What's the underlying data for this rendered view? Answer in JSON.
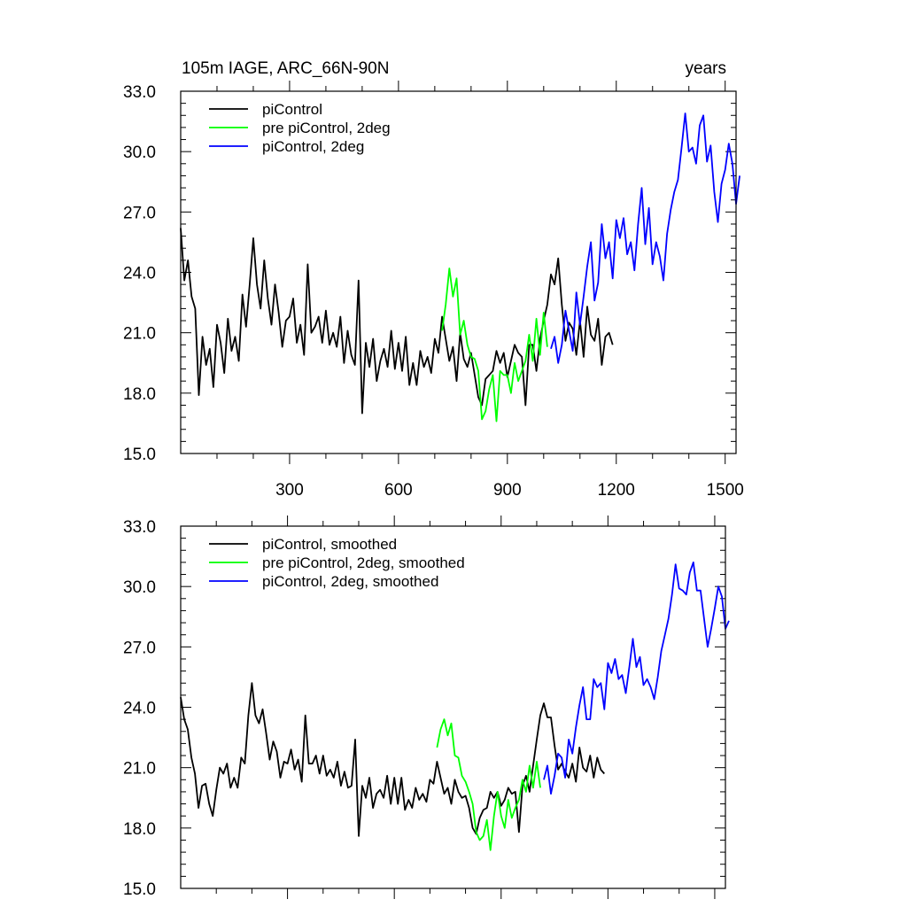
{
  "chart_data": [
    {
      "type": "line",
      "title": "105m IAGE, ARC_66N-90N",
      "units": "years",
      "xlim": [
        0,
        1530
      ],
      "ylim": [
        15,
        33
      ],
      "x_ticks": [
        300,
        600,
        900,
        1200,
        1500
      ],
      "y_ticks": [
        "15.0",
        "18.0",
        "21.0",
        "24.0",
        "27.0",
        "30.0",
        "33.0"
      ],
      "legend": {
        "placement": "top-left",
        "entries": [
          "piControl",
          "pre piControl, 2deg",
          "piControl, 2deg"
        ]
      },
      "series": [
        {
          "name": "piControl",
          "color": "#000000",
          "x_start": 0,
          "x_step": 10,
          "values": [
            26.2,
            23.6,
            24.6,
            22.8,
            22.2,
            17.9,
            20.8,
            19.4,
            20.2,
            18.3,
            21.4,
            20.5,
            19.0,
            21.7,
            20.1,
            20.8,
            19.6,
            22.9,
            21.3,
            23.4,
            25.7,
            23.4,
            22.2,
            24.6,
            22.7,
            21.4,
            23.4,
            22.0,
            20.3,
            21.6,
            21.8,
            22.7,
            20.5,
            21.4,
            19.9,
            24.4,
            21.0,
            21.3,
            21.8,
            20.5,
            22.1,
            20.4,
            21.0,
            20.3,
            21.8,
            19.5,
            21.1,
            19.9,
            19.4,
            23.6,
            17.0,
            20.5,
            19.3,
            20.7,
            18.6,
            19.6,
            20.2,
            19.3,
            21.1,
            19.2,
            20.5,
            19.1,
            20.8,
            18.4,
            19.5,
            18.4,
            20.1,
            19.3,
            19.8,
            19.0,
            20.7,
            20.0,
            21.8,
            20.7,
            19.6,
            20.3,
            18.6,
            21.0,
            19.7,
            19.3,
            20.0,
            18.9,
            17.8,
            17.4,
            18.7,
            18.9,
            19.1,
            20.1,
            19.5,
            20.0,
            18.8,
            19.6,
            20.4,
            20.0,
            19.8,
            17.4,
            20.4,
            20.4,
            19.1,
            20.7,
            21.6,
            22.4,
            23.9,
            23.4,
            24.7,
            22.4,
            20.6,
            21.5,
            21.2,
            19.9,
            21.6,
            19.8,
            22.3,
            20.9,
            20.6,
            21.7,
            19.4,
            20.8,
            21.0,
            20.4
          ]
        },
        {
          "name": "pre piControl, 2deg",
          "color": "#00ff00",
          "x_start": 720,
          "x_step": 10,
          "values": [
            21.1,
            22.4,
            24.2,
            22.8,
            23.7,
            20.9,
            21.6,
            20.4,
            19.8,
            19.7,
            19.1,
            16.7,
            17.1,
            18.2,
            18.9,
            16.6,
            19.1,
            18.9,
            18.9,
            18.0,
            19.5,
            18.6,
            19.1,
            19.6,
            20.9,
            19.6,
            21.7,
            19.9,
            22.0,
            20.3
          ]
        },
        {
          "name": "piControl, 2deg",
          "color": "#0000ff",
          "x_start": 1020,
          "x_step": 10,
          "values": [
            20.2,
            20.8,
            19.5,
            20.4,
            22.1,
            21.1,
            20.1,
            23.0,
            21.4,
            22.8,
            24.3,
            25.5,
            22.6,
            23.5,
            26.4,
            24.7,
            25.5,
            23.7,
            26.6,
            25.7,
            26.7,
            24.9,
            25.5,
            24.1,
            26.4,
            28.2,
            25.4,
            27.2,
            24.4,
            25.5,
            24.8,
            23.6,
            25.9,
            27.1,
            28.0,
            28.6,
            30.2,
            31.9,
            30.0,
            30.2,
            29.4,
            31.3,
            31.8,
            29.5,
            30.3,
            28.0,
            26.5,
            28.4,
            29.1,
            30.4,
            29.4,
            27.4,
            28.8
          ]
        }
      ]
    },
    {
      "type": "line",
      "xlim": [
        0,
        1530
      ],
      "ylim": [
        15,
        33
      ],
      "y_ticks": [
        "15.0",
        "18.0",
        "21.0",
        "24.0",
        "27.0",
        "30.0",
        "33.0"
      ],
      "legend": {
        "placement": "top-left",
        "entries": [
          "piControl, smoothed",
          "pre piControl, 2deg, smoothed",
          "piControl, 2deg, smoothed"
        ]
      },
      "series": [
        {
          "name": "piControl, smoothed",
          "color": "#000000",
          "x_start": 0,
          "x_step": 10,
          "values": [
            24.5,
            23.4,
            22.9,
            21.5,
            20.7,
            19.0,
            20.1,
            20.2,
            19.2,
            18.6,
            19.9,
            21.0,
            20.7,
            21.2,
            20.0,
            20.5,
            20.0,
            21.5,
            21.2,
            23.6,
            25.2,
            23.6,
            23.2,
            23.9,
            22.7,
            21.4,
            22.3,
            21.8,
            20.5,
            21.3,
            21.2,
            21.9,
            20.9,
            21.4,
            20.3,
            23.6,
            21.2,
            21.2,
            21.6,
            20.7,
            21.6,
            20.6,
            20.9,
            20.5,
            21.3,
            20.1,
            20.8,
            20.0,
            20.1,
            22.4,
            17.6,
            20.1,
            19.5,
            20.5,
            19.0,
            19.7,
            19.9,
            19.5,
            20.6,
            19.2,
            20.5,
            19.2,
            20.5,
            18.9,
            19.4,
            19.0,
            20.0,
            19.4,
            19.7,
            19.3,
            20.4,
            20.2,
            21.3,
            20.5,
            19.7,
            20.0,
            19.2,
            20.4,
            19.8,
            19.5,
            19.6,
            19.0,
            18.0,
            17.7,
            18.5,
            18.9,
            19.0,
            19.8,
            19.5,
            19.8,
            19.1,
            19.4,
            20.0,
            19.7,
            19.8,
            17.8,
            20.1,
            20.6,
            19.8,
            21.1,
            22.4,
            23.6,
            24.2,
            23.5,
            23.5,
            22.1,
            20.9,
            21.2,
            20.8,
            20.5,
            21.2,
            20.3,
            22.0,
            21.0,
            20.8,
            21.6,
            20.5,
            21.5,
            20.9,
            20.7
          ]
        },
        {
          "name": "pre piControl, 2deg, smoothed",
          "color": "#00ff00",
          "x_start": 720,
          "x_step": 10,
          "values": [
            22.0,
            22.9,
            23.4,
            22.6,
            23.2,
            21.6,
            21.5,
            20.6,
            20.3,
            19.8,
            19.2,
            17.8,
            17.4,
            17.6,
            18.4,
            16.9,
            18.6,
            19.8,
            18.6,
            18.0,
            19.4,
            18.5,
            19.0,
            19.4,
            20.4,
            19.8,
            21.1,
            20.0,
            21.3,
            20.0
          ]
        },
        {
          "name": "piControl, 2deg, smoothed",
          "color": "#0000ff",
          "x_start": 1020,
          "x_step": 10,
          "values": [
            20.4,
            21.1,
            19.7,
            20.6,
            21.7,
            21.5,
            20.5,
            22.4,
            21.7,
            23.0,
            24.1,
            25.0,
            23.4,
            23.4,
            25.4,
            25.0,
            25.2,
            23.9,
            26.2,
            25.7,
            26.4,
            25.4,
            25.6,
            24.7,
            26.0,
            27.4,
            26.0,
            26.5,
            25.1,
            25.4,
            25.0,
            24.4,
            25.5,
            26.8,
            27.6,
            28.4,
            29.6,
            31.1,
            29.9,
            29.8,
            29.6,
            30.7,
            31.2,
            29.8,
            29.8,
            28.4,
            27.0,
            27.9,
            28.9,
            30.0,
            29.5,
            27.9,
            28.3
          ]
        }
      ]
    }
  ]
}
